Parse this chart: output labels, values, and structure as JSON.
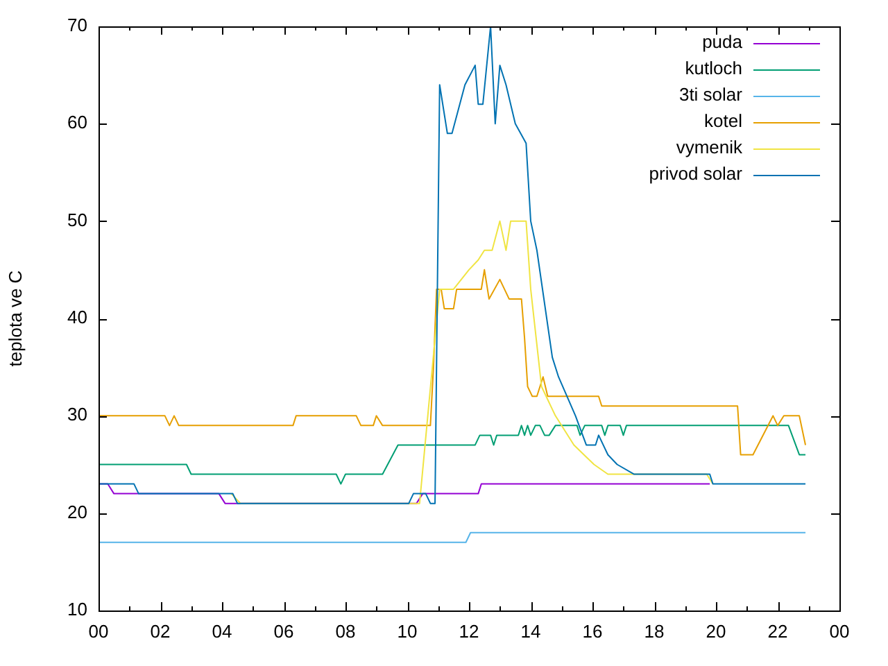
{
  "chart_data": {
    "type": "line",
    "ylabel": "teplota ve C",
    "xlim": [
      0,
      24
    ],
    "ylim": [
      10,
      70
    ],
    "xticks": [
      {
        "value": 0,
        "label": "00"
      },
      {
        "value": 1,
        "label": null
      },
      {
        "value": 2,
        "label": "02"
      },
      {
        "value": 3,
        "label": null
      },
      {
        "value": 4,
        "label": "04"
      },
      {
        "value": 5,
        "label": null
      },
      {
        "value": 6,
        "label": "06"
      },
      {
        "value": 7,
        "label": null
      },
      {
        "value": 8,
        "label": "08"
      },
      {
        "value": 9,
        "label": null
      },
      {
        "value": 10,
        "label": "10"
      },
      {
        "value": 11,
        "label": null
      },
      {
        "value": 12,
        "label": "12"
      },
      {
        "value": 13,
        "label": null
      },
      {
        "value": 14,
        "label": "14"
      },
      {
        "value": 15,
        "label": null
      },
      {
        "value": 16,
        "label": "16"
      },
      {
        "value": 17,
        "label": null
      },
      {
        "value": 18,
        "label": "18"
      },
      {
        "value": 19,
        "label": null
      },
      {
        "value": 20,
        "label": "20"
      },
      {
        "value": 21,
        "label": null
      },
      {
        "value": 22,
        "label": "22"
      },
      {
        "value": 23,
        "label": null
      },
      {
        "value": 24,
        "label": "00"
      }
    ],
    "yticks": [
      10,
      20,
      30,
      40,
      50,
      60,
      70
    ],
    "grid": false,
    "legend": "top right",
    "marker": "none",
    "line_style": "solid",
    "series": [
      {
        "name": "puda",
        "color": "#9400d3",
        "x": [
          0,
          0.3,
          0.5,
          3.9,
          4.1,
          10.3,
          10.5,
          12.3,
          12.4,
          19.8
        ],
        "values": [
          23,
          23,
          22,
          22,
          21,
          21,
          22,
          22,
          23,
          23
        ]
      },
      {
        "name": "kutloch",
        "color": "#009e73",
        "x": [
          0,
          2.85,
          3.0,
          7.7,
          7.85,
          8.0,
          9.2,
          9.7,
          12.2,
          12.35,
          12.7,
          12.8,
          12.9,
          13.6,
          13.7,
          13.8,
          13.9,
          14.0,
          14.15,
          14.3,
          14.45,
          14.6,
          14.8,
          15.0,
          15.5,
          15.6,
          15.75,
          16.3,
          16.4,
          16.5,
          16.9,
          17.0,
          17.1,
          22.35,
          22.7,
          22.9
        ],
        "values": [
          25,
          25,
          24,
          24,
          23,
          24,
          24,
          27,
          27,
          28,
          28,
          27,
          28,
          28,
          29,
          28,
          29,
          28,
          29,
          29,
          28,
          28,
          29,
          29,
          29,
          28,
          29,
          29,
          28,
          29,
          29,
          28,
          29,
          29,
          26,
          26
        ]
      },
      {
        "name": "3ti solar",
        "color": "#56b4e9",
        "x": [
          0,
          11.9,
          12.05,
          22.9
        ],
        "values": [
          17,
          17,
          18,
          18
        ]
      },
      {
        "name": "kotel",
        "color": "#e69f00",
        "x": [
          0,
          2.15,
          2.3,
          2.45,
          2.6,
          6.3,
          6.4,
          8.35,
          8.5,
          8.9,
          9.0,
          9.2,
          10.75,
          10.85,
          10.95,
          11.1,
          11.2,
          11.5,
          11.6,
          12.4,
          12.5,
          12.65,
          13.0,
          13.3,
          13.7,
          13.8,
          13.9,
          14.05,
          14.2,
          14.4,
          14.55,
          16.2,
          16.3,
          20.7,
          20.8,
          21.2,
          21.85,
          22.0,
          22.2,
          22.7,
          22.9
        ],
        "values": [
          30,
          30,
          29,
          30,
          29,
          29,
          30,
          30,
          29,
          29,
          30,
          29,
          29,
          35,
          43,
          43,
          41,
          41,
          43,
          43,
          45,
          42,
          44,
          42,
          42,
          38,
          33,
          32,
          32,
          34,
          32,
          32,
          31,
          31,
          26,
          26,
          30,
          29,
          30,
          30,
          27
        ]
      },
      {
        "name": "vymenik",
        "color": "#f0e442",
        "x": [
          4.3,
          4.6,
          10.0,
          10.4,
          11.05,
          11.5,
          12.0,
          12.3,
          12.5,
          12.75,
          13.0,
          13.2,
          13.35,
          13.85,
          14.0,
          14.35,
          14.8,
          15.4,
          16.05,
          16.5,
          19.7,
          19.9
        ],
        "values": [
          22,
          21,
          21,
          21,
          43,
          43,
          45,
          46,
          47,
          47,
          50,
          47,
          50,
          50,
          43,
          33,
          30,
          27,
          25,
          24,
          24,
          23
        ]
      },
      {
        "name": "privod solar",
        "color": "#0072b2",
        "x": [
          0,
          1.15,
          1.3,
          4.35,
          4.5,
          10.05,
          10.2,
          10.6,
          10.75,
          10.9,
          11.05,
          11.15,
          11.3,
          11.45,
          11.87,
          12.2,
          12.3,
          12.45,
          12.7,
          12.85,
          13.0,
          13.2,
          13.5,
          13.85,
          14.0,
          14.2,
          14.7,
          14.9,
          15.45,
          15.8,
          16.1,
          16.2,
          16.5,
          16.8,
          17.35,
          19.8,
          19.9,
          22.9
        ],
        "values": [
          23,
          23,
          22,
          22,
          21,
          21,
          22,
          22,
          21,
          21,
          64,
          62,
          59,
          59,
          64,
          66,
          62,
          62,
          70,
          60,
          66,
          64,
          60,
          58,
          50,
          47,
          36,
          34,
          30,
          27,
          27,
          28,
          26,
          25,
          24,
          24,
          23,
          23
        ]
      }
    ]
  }
}
